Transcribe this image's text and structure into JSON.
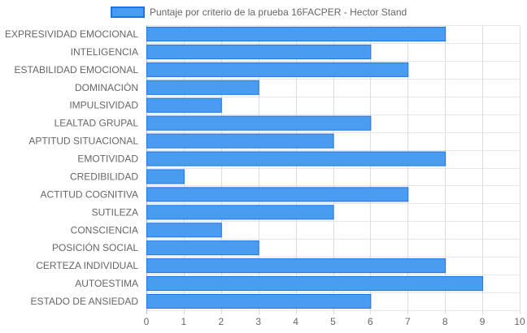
{
  "chart_data": {
    "type": "bar",
    "orientation": "horizontal",
    "series": [
      {
        "name": "Puntaje por criterio de la prueba 16FACPER - Hector Stand",
        "color": "#4a9cf0",
        "border_color": "#1e74e6",
        "values": [
          8,
          6,
          7,
          3,
          2,
          6,
          5,
          8,
          1,
          7,
          5,
          2,
          3,
          8,
          9,
          6
        ]
      }
    ],
    "categories": [
      "EXPRESIVIDAD EMOCIONAL",
      "INTELIGENCIA",
      "ESTABILIDAD EMOCIONAL",
      "DOMINACIÓN",
      "IMPULSIVIDAD",
      "LEALTAD GRUPAL",
      "APTITUD SITUACIONAL",
      "EMOTIVIDAD",
      "CREDIBILIDAD",
      "ACTITUD COGNITIVA",
      "SUTILEZA",
      "CONSCIENCIA",
      "POSICIÓN SOCIAL",
      "CERTEZA INDIVIDUAL",
      "AUTOESTIMA",
      "ESTADO DE ANSIEDAD"
    ],
    "xlim": [
      0,
      10
    ],
    "x_ticks": [
      "0",
      "1",
      "2",
      "3",
      "4",
      "5",
      "6",
      "7",
      "8",
      "9",
      "10"
    ],
    "grid": true,
    "legend_position": "top"
  }
}
